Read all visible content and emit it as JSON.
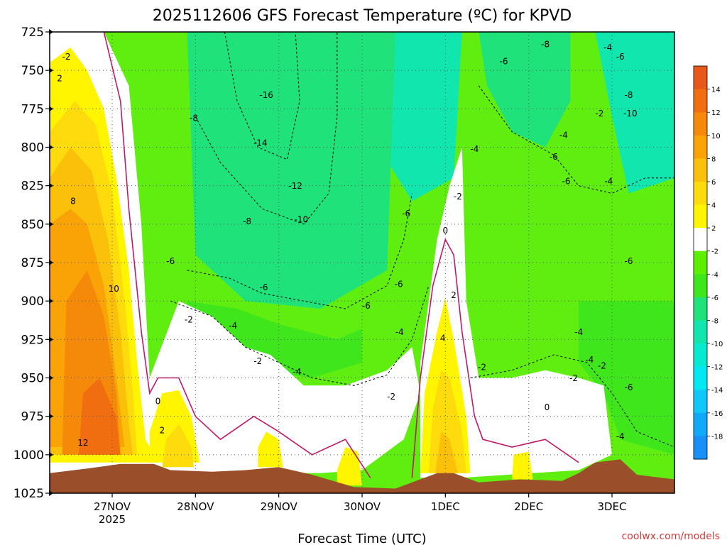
{
  "chart_data": {
    "type": "heatmap",
    "title": "2025112606 GFS Forecast Temperature (ºC) for KPVD",
    "xlabel": "Forecast Time (UTC)",
    "ylabel": "",
    "credit": "coolwx.com/models",
    "y_axis": {
      "unit": "hPa",
      "range": [
        1025,
        725
      ],
      "ticks": [
        "725",
        "750",
        "775",
        "800",
        "825",
        "850",
        "875",
        "900",
        "925",
        "950",
        "975",
        "1000",
        "1025"
      ]
    },
    "x_axis": {
      "ticks": [
        {
          "label": "27NOV",
          "sublabel": "2025",
          "day": 0
        },
        {
          "label": "28NOV",
          "sublabel": "",
          "day": 1
        },
        {
          "label": "29NOV",
          "sublabel": "",
          "day": 2
        },
        {
          "label": "30NOV",
          "sublabel": "",
          "day": 3
        },
        {
          "label": "1DEC",
          "sublabel": "",
          "day": 4
        },
        {
          "label": "2DEC",
          "sublabel": "",
          "day": 5
        },
        {
          "label": "3DEC",
          "sublabel": "",
          "day": 6
        }
      ],
      "range_days": [
        -0.75,
        6.75
      ]
    },
    "colorbar": {
      "ticks": [
        "14",
        "12",
        "10",
        "8",
        "6",
        "4",
        "2",
        "-2",
        "-4",
        "-6",
        "-8",
        "-10",
        "-12",
        "-14",
        "-16",
        "-18"
      ],
      "bands": [
        {
          "max": 16,
          "color": "#e8581a"
        },
        {
          "max": 14,
          "color": "#f06e10"
        },
        {
          "max": 12,
          "color": "#f5890a"
        },
        {
          "max": 10,
          "color": "#f9a306"
        },
        {
          "max": 8,
          "color": "#fbc00a"
        },
        {
          "max": 6,
          "color": "#fddb0c"
        },
        {
          "max": 4,
          "color": "#fff500"
        },
        {
          "max": 2,
          "color": "#ffffff"
        },
        {
          "max": -2,
          "color": "#5cf000"
        },
        {
          "max": -4,
          "color": "#3fe61c"
        },
        {
          "max": -6,
          "color": "#1fe27a"
        },
        {
          "max": -8,
          "color": "#10e6ad"
        },
        {
          "max": -10,
          "color": "#08ead0"
        },
        {
          "max": -12,
          "color": "#00e8f2"
        },
        {
          "max": -14,
          "color": "#10c8f8"
        },
        {
          "max": -16,
          "color": "#10a8f8"
        },
        {
          "max": -18,
          "color": "#1890f8"
        }
      ]
    },
    "ground_color": "#9a4e2a",
    "ground_surface": [
      {
        "day": -0.75,
        "p": 1012
      },
      {
        "day": -0.3,
        "p": 1009
      },
      {
        "day": 0.1,
        "p": 1006
      },
      {
        "day": 0.5,
        "p": 1006
      },
      {
        "day": 0.7,
        "p": 1010
      },
      {
        "day": 1.2,
        "p": 1011
      },
      {
        "day": 1.6,
        "p": 1010
      },
      {
        "day": 2.0,
        "p": 1008
      },
      {
        "day": 2.4,
        "p": 1013
      },
      {
        "day": 2.9,
        "p": 1021
      },
      {
        "day": 3.4,
        "p": 1022
      },
      {
        "day": 3.6,
        "p": 1018
      },
      {
        "day": 3.9,
        "p": 1012
      },
      {
        "day": 4.1,
        "p": 1012
      },
      {
        "day": 4.4,
        "p": 1018
      },
      {
        "day": 4.9,
        "p": 1016
      },
      {
        "day": 5.4,
        "p": 1017
      },
      {
        "day": 5.6,
        "p": 1012
      },
      {
        "day": 5.8,
        "p": 1005
      },
      {
        "day": 6.1,
        "p": 1003
      },
      {
        "day": 6.3,
        "p": 1013
      },
      {
        "day": 6.75,
        "p": 1016
      }
    ],
    "contour_labels": [
      {
        "text": "-2",
        "day": -0.55,
        "p": 743
      },
      {
        "text": "2",
        "day": -0.63,
        "p": 757
      },
      {
        "text": "8",
        "day": -0.47,
        "p": 837
      },
      {
        "text": "10",
        "day": 0.02,
        "p": 894
      },
      {
        "text": "12",
        "day": -0.35,
        "p": 994
      },
      {
        "text": "0",
        "day": 0.55,
        "p": 967
      },
      {
        "text": "2",
        "day": 0.6,
        "p": 986
      },
      {
        "text": "-2",
        "day": 0.92,
        "p": 914
      },
      {
        "text": "-6",
        "day": 0.7,
        "p": 876
      },
      {
        "text": "-8",
        "day": 0.98,
        "p": 783
      },
      {
        "text": "-16",
        "day": 1.85,
        "p": 768
      },
      {
        "text": "-14",
        "day": 1.78,
        "p": 799
      },
      {
        "text": "-12",
        "day": 2.2,
        "p": 827
      },
      {
        "text": "-10",
        "day": 2.27,
        "p": 849
      },
      {
        "text": "-8",
        "day": 1.62,
        "p": 850
      },
      {
        "text": "-6",
        "day": 1.82,
        "p": 893
      },
      {
        "text": "-4",
        "day": 1.45,
        "p": 918
      },
      {
        "text": "-2",
        "day": 1.75,
        "p": 941
      },
      {
        "text": "-4",
        "day": 2.22,
        "p": 948
      },
      {
        "text": "-6",
        "day": 3.05,
        "p": 905
      },
      {
        "text": "-4",
        "day": 3.45,
        "p": 922
      },
      {
        "text": "-2",
        "day": 3.35,
        "p": 964
      },
      {
        "text": "-6",
        "day": 3.44,
        "p": 891
      },
      {
        "text": "-6",
        "day": 3.53,
        "p": 845
      },
      {
        "text": "-2",
        "day": 4.15,
        "p": 834
      },
      {
        "text": "0",
        "day": 4.0,
        "p": 856
      },
      {
        "text": "2",
        "day": 4.1,
        "p": 898
      },
      {
        "text": "4",
        "day": 3.97,
        "p": 926
      },
      {
        "text": "-2",
        "day": 4.44,
        "p": 945
      },
      {
        "text": "-4",
        "day": 4.35,
        "p": 803
      },
      {
        "text": "-6",
        "day": 4.7,
        "p": 746
      },
      {
        "text": "-8",
        "day": 5.2,
        "p": 735
      },
      {
        "text": "-4",
        "day": 5.6,
        "p": 922
      },
      {
        "text": "-6",
        "day": 5.3,
        "p": 808
      },
      {
        "text": "-4",
        "day": 5.42,
        "p": 794
      },
      {
        "text": "-6",
        "day": 5.45,
        "p": 824
      },
      {
        "text": "0",
        "day": 5.22,
        "p": 971
      },
      {
        "text": "-2",
        "day": 5.54,
        "p": 952
      },
      {
        "text": "-4",
        "day": 5.73,
        "p": 940
      },
      {
        "text": "-2",
        "day": 5.88,
        "p": 944
      },
      {
        "text": "-4",
        "day": 5.96,
        "p": 824
      },
      {
        "text": "-2",
        "day": 5.85,
        "p": 780
      },
      {
        "text": "-4",
        "day": 5.95,
        "p": 737
      },
      {
        "text": "-6",
        "day": 6.1,
        "p": 743
      },
      {
        "text": "-8",
        "day": 6.2,
        "p": 768
      },
      {
        "text": "-10",
        "day": 6.22,
        "p": 780
      },
      {
        "text": "-6",
        "day": 6.2,
        "p": 876
      },
      {
        "text": "-6",
        "day": 6.2,
        "p": 958
      },
      {
        "text": "-4",
        "day": 6.1,
        "p": 990
      }
    ]
  }
}
